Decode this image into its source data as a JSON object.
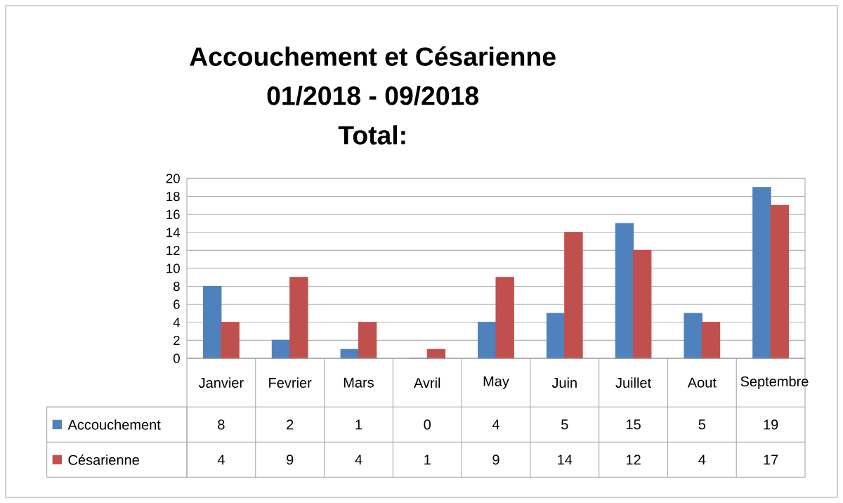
{
  "chart_data": {
    "type": "bar",
    "title": "Accouchement et Césarienne",
    "subtitle": "01/2018 - 09/2018",
    "annotations": [
      "Total:"
    ],
    "categories": [
      "Janvier",
      "Fevrier",
      "Mars",
      "Avril",
      "May",
      "Juin",
      "Juillet",
      "Aout",
      "Septembre"
    ],
    "series": [
      {
        "name": "Accouchement",
        "color": "#4f81bd",
        "values": [
          8,
          2,
          1,
          0,
          4,
          5,
          15,
          5,
          19
        ]
      },
      {
        "name": "Césarienne",
        "color": "#c0504d",
        "values": [
          4,
          9,
          4,
          1,
          9,
          14,
          12,
          4,
          17
        ]
      }
    ],
    "ylim": [
      0,
      20
    ],
    "yticks": [
      0,
      2,
      4,
      6,
      8,
      10,
      12,
      14,
      16,
      18,
      20
    ],
    "grid": "y",
    "legend": "bottom left",
    "data_labels": true
  }
}
